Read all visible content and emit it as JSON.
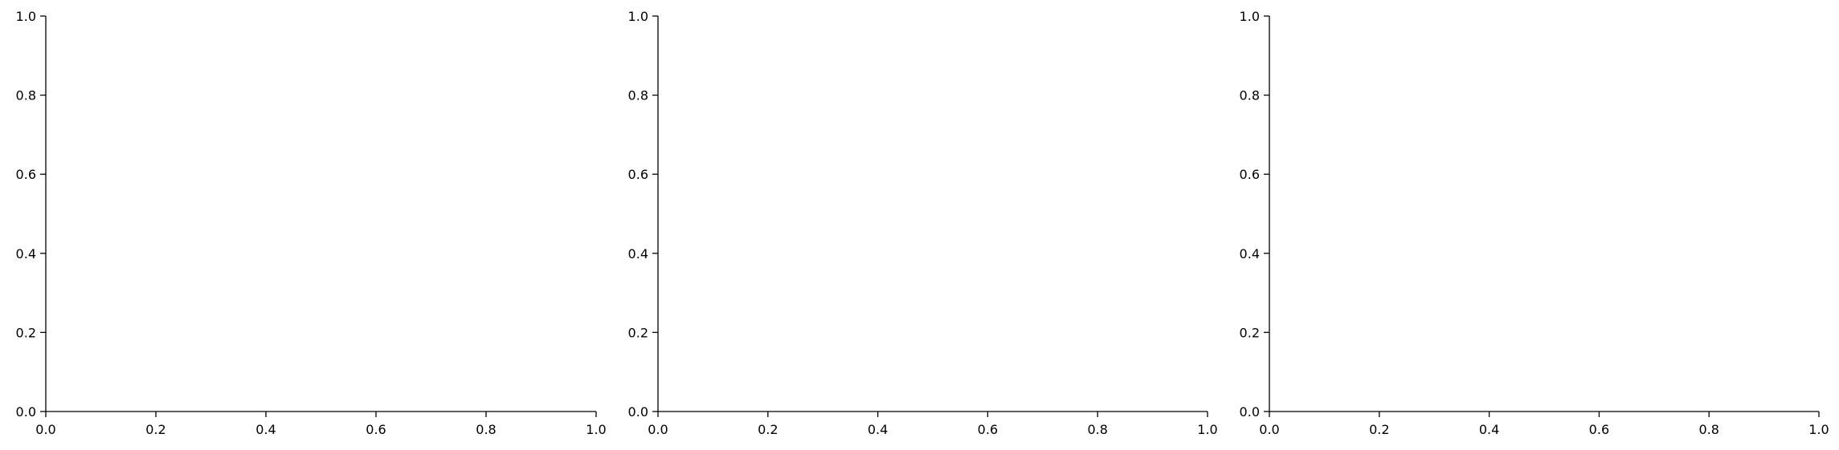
{
  "chart_data": [
    {
      "type": "line",
      "title": "",
      "xlabel": "",
      "ylabel": "",
      "xlim": [
        0,
        1
      ],
      "ylim": [
        0,
        1
      ],
      "xticks": [
        "0.0",
        "0.2",
        "0.4",
        "0.6",
        "0.8",
        "1.0"
      ],
      "yticks": [
        "0.0",
        "0.2",
        "0.4",
        "0.6",
        "0.8",
        "1.0"
      ],
      "grid": false,
      "series": []
    },
    {
      "type": "line",
      "title": "",
      "xlabel": "",
      "ylabel": "",
      "xlim": [
        0,
        1
      ],
      "ylim": [
        0,
        1
      ],
      "xticks": [
        "0.0",
        "0.2",
        "0.4",
        "0.6",
        "0.8",
        "1.0"
      ],
      "yticks": [
        "0.0",
        "0.2",
        "0.4",
        "0.6",
        "0.8",
        "1.0"
      ],
      "grid": false,
      "series": []
    },
    {
      "type": "line",
      "title": "",
      "xlabel": "",
      "ylabel": "",
      "xlim": [
        0,
        1
      ],
      "ylim": [
        0,
        1
      ],
      "xticks": [
        "0.0",
        "0.2",
        "0.4",
        "0.6",
        "0.8",
        "1.0"
      ],
      "yticks": [
        "0.0",
        "0.2",
        "0.4",
        "0.6",
        "0.8",
        "1.0"
      ],
      "grid": false,
      "series": []
    }
  ],
  "colors": {
    "axis": "#000000",
    "background": "#ffffff"
  }
}
